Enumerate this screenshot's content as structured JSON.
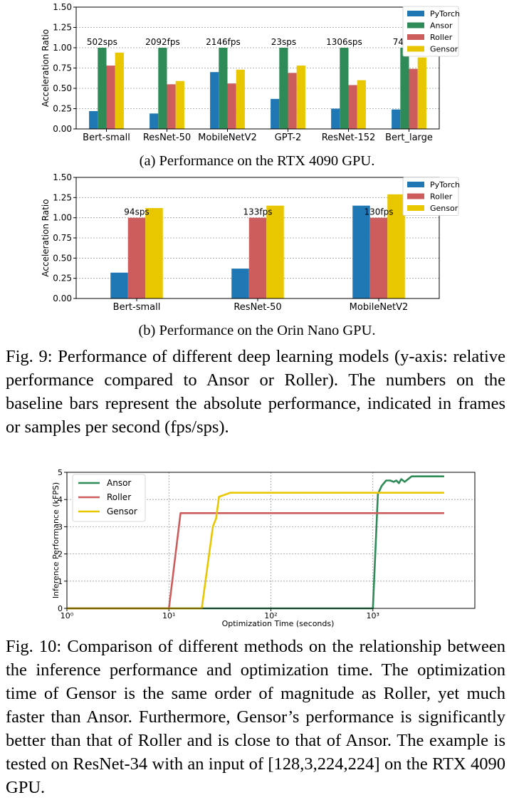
{
  "chart_data": [
    {
      "type": "bar",
      "ylabel": "Acceleration Ratio",
      "ylim": [
        0,
        1.5
      ],
      "yticks": [
        "0.00",
        "0.25",
        "0.50",
        "0.75",
        "1.00",
        "1.25",
        "1.50"
      ],
      "categories": [
        "Bert-small",
        "ResNet-50",
        "MobileNetV2",
        "GPT-2",
        "ResNet-152",
        "Bert_large"
      ],
      "series": [
        {
          "name": "PyTorch",
          "color": "#1f77b4",
          "values": [
            0.22,
            0.19,
            0.7,
            0.37,
            0.25,
            0.24
          ]
        },
        {
          "name": "Ansor",
          "color": "#2e8b57",
          "values": [
            1.0,
            1.0,
            1.0,
            1.0,
            1.0,
            1.0
          ]
        },
        {
          "name": "Roller",
          "color": "#cd5c5c",
          "values": [
            0.78,
            0.55,
            0.56,
            0.69,
            0.54,
            0.74
          ]
        },
        {
          "name": "Gensor",
          "color": "#e8c600",
          "values": [
            0.94,
            0.59,
            0.73,
            0.78,
            0.6,
            0.88
          ]
        }
      ],
      "annotations": [
        "502sps",
        "2092fps",
        "2146fps",
        "23sps",
        "1306sps",
        "74fps"
      ],
      "grid": true,
      "legend": "top-right"
    },
    {
      "type": "bar",
      "ylabel": "Acceleration Ratio",
      "ylim": [
        0,
        1.5
      ],
      "yticks": [
        "0.00",
        "0.25",
        "0.50",
        "0.75",
        "1.00",
        "1.25",
        "1.50"
      ],
      "categories": [
        "Bert-small",
        "ResNet-50",
        "MobileNetV2"
      ],
      "series": [
        {
          "name": "PyTorch",
          "color": "#1f77b4",
          "values": [
            0.32,
            0.37,
            1.15
          ]
        },
        {
          "name": "Roller",
          "color": "#cd5c5c",
          "values": [
            1.0,
            1.0,
            1.0
          ]
        },
        {
          "name": "Gensor",
          "color": "#e8c600",
          "values": [
            1.12,
            1.15,
            1.29
          ]
        }
      ],
      "annotations": [
        "94sps",
        "133fps",
        "130fps"
      ],
      "grid": true,
      "legend": "top-right"
    },
    {
      "type": "line",
      "xlabel": "Optimization Time (seconds)",
      "ylabel": "Inference Performance (kFPS)",
      "xscale": "log",
      "xlim": [
        1,
        10000
      ],
      "ylim": [
        0,
        5
      ],
      "xticks": [
        "10⁰",
        "10¹",
        "10²",
        "10³"
      ],
      "yticks": [
        "0",
        "1",
        "2",
        "3",
        "4",
        "5"
      ],
      "series": [
        {
          "name": "Ansor",
          "color": "#2e8b57",
          "x": [
            1,
            1000,
            1120,
            1220,
            1350,
            1480,
            1600,
            1700,
            1800,
            1900,
            2050,
            2400,
            3000,
            5000
          ],
          "y": [
            0,
            0,
            4.2,
            4.5,
            4.7,
            4.7,
            4.65,
            4.7,
            4.6,
            4.75,
            4.65,
            4.85,
            4.85,
            4.85
          ]
        },
        {
          "name": "Roller",
          "color": "#cd5c5c",
          "x": [
            1,
            10,
            13,
            5000
          ],
          "y": [
            0,
            0,
            3.5,
            3.5
          ]
        },
        {
          "name": "Gensor",
          "color": "#e8c600",
          "x": [
            1,
            21,
            27,
            29,
            31,
            40,
            5000
          ],
          "y": [
            0,
            0,
            3.0,
            3.3,
            4.1,
            4.25,
            4.25
          ]
        }
      ],
      "grid": true,
      "legend": "top-left"
    }
  ],
  "captions": {
    "sub_a": "(a) Performance on the RTX 4090 GPU.",
    "sub_b": "(b) Performance on the Orin Nano GPU.",
    "fig9": "Fig. 9: Performance of different deep learning models (y-axis: relative performance compared to Ansor or Roller). The numbers on the baseline bars represent the absolute performance, indicated in frames or samples per second (fps/sps).",
    "fig10": "Fig. 10: Comparison of different methods on the relationship between the inference performance and optimization time. The optimization time of Gensor is the same order of magnitude as Roller, yet much faster than Ansor. Furthermore, Gensor’s performance is significantly better than that of Roller and is close to that of Ansor. The example is tested on ResNet-34 with an input of [128,3,224,224] on the RTX 4090 GPU."
  }
}
